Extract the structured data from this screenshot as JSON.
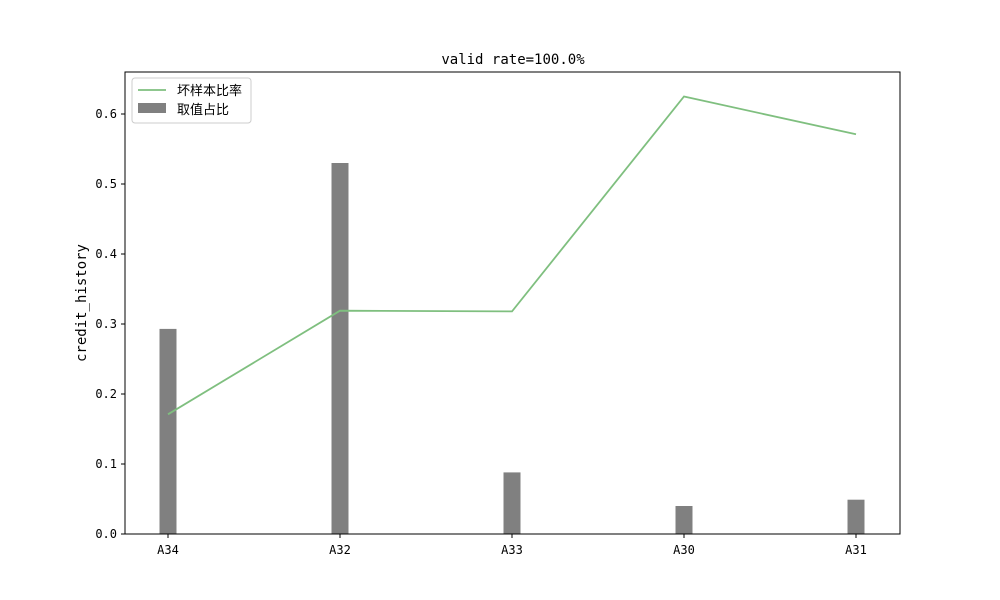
{
  "chart_data": {
    "type": "bar",
    "title": "valid rate=100.0%",
    "xlabel": "",
    "ylabel": "credit_history",
    "categories": [
      "A34",
      "A32",
      "A33",
      "A30",
      "A31"
    ],
    "ylim": [
      0,
      0.66
    ],
    "yticks": [
      0.0,
      0.1,
      0.2,
      0.3,
      0.4,
      0.5,
      0.6
    ],
    "ytick_labels": [
      "0.0",
      "0.1",
      "0.2",
      "0.3",
      "0.4",
      "0.5",
      "0.6"
    ],
    "grid": false,
    "legend_position": "top-left",
    "series": [
      {
        "name": "坏样本比率",
        "type": "line",
        "color": "#7fbf7f",
        "values": [
          0.171,
          0.319,
          0.318,
          0.625,
          0.571
        ]
      },
      {
        "name": "取值占比",
        "type": "bar",
        "color": "#808080",
        "values": [
          0.293,
          0.53,
          0.088,
          0.04,
          0.049
        ]
      }
    ]
  }
}
